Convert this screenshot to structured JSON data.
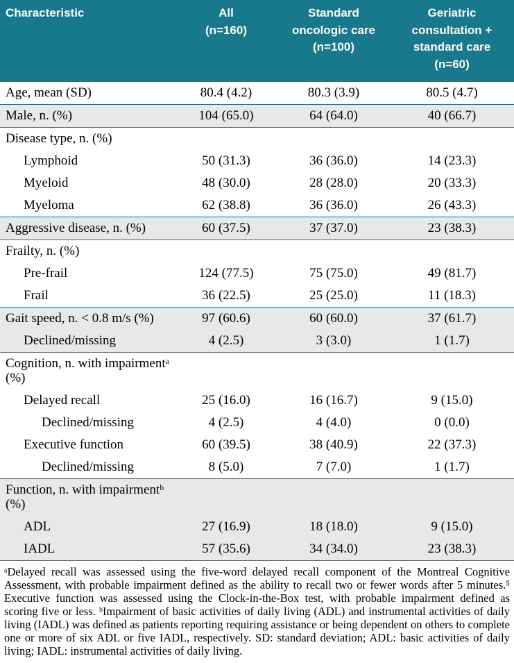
{
  "colors": {
    "header_bg": "#17798b",
    "row_shade": "#e6e8ea",
    "rule": "#17798b",
    "header_text": "#ffffff"
  },
  "table": {
    "header": [
      {
        "label": "Characteristic"
      },
      {
        "label": "All\n(n=160)"
      },
      {
        "label": "Standard\noncologic care\n(n=100)"
      },
      {
        "label": "Geriatric\nconsultation +\nstandard care\n(n=60)"
      }
    ],
    "sections": [
      {
        "shaded": false,
        "rows": [
          {
            "label": "Age, mean (SD)",
            "indent": 0,
            "values": [
              "80.4 (4.2)",
              "80.3 (3.9)",
              "80.5 (4.7)"
            ]
          }
        ]
      },
      {
        "shaded": true,
        "rows": [
          {
            "label": "Male, n. (%)",
            "indent": 0,
            "values": [
              "104 (65.0)",
              "64 (64.0)",
              "40 (66.7)"
            ]
          }
        ]
      },
      {
        "shaded": false,
        "rows": [
          {
            "label": "Disease type, n. (%)",
            "indent": 0,
            "values": [
              "",
              "",
              ""
            ]
          },
          {
            "label": "Lymphoid",
            "indent": 1,
            "values": [
              "50 (31.3)",
              "36 (36.0)",
              "14 (23.3)"
            ]
          },
          {
            "label": "Myeloid",
            "indent": 1,
            "values": [
              "48 (30.0)",
              "28 (28.0)",
              "20 (33.3)"
            ]
          },
          {
            "label": "Myeloma",
            "indent": 1,
            "values": [
              "62 (38.8)",
              "36 (36.0)",
              "26 (43.3)"
            ]
          }
        ]
      },
      {
        "shaded": true,
        "rows": [
          {
            "label": "Aggressive disease, n. (%)",
            "indent": 0,
            "values": [
              "60 (37.5)",
              "37 (37.0)",
              "23 (38.3)"
            ]
          }
        ]
      },
      {
        "shaded": false,
        "rows": [
          {
            "label": "Frailty, n. (%)",
            "indent": 0,
            "values": [
              "",
              "",
              ""
            ]
          },
          {
            "label": "Pre-frail",
            "indent": 1,
            "values": [
              "124 (77.5)",
              "75 (75.0)",
              "49 (81.7)"
            ]
          },
          {
            "label": "Frail",
            "indent": 1,
            "values": [
              "36 (22.5)",
              "25 (25.0)",
              "11 (18.3)"
            ]
          }
        ]
      },
      {
        "shaded": true,
        "rows": [
          {
            "label": "Gait speed, n. < 0.8 m/s (%)",
            "indent": 0,
            "values": [
              "97 (60.6)",
              "60 (60.0)",
              "37 (61.7)"
            ]
          },
          {
            "label": "Declined/missing",
            "indent": 1,
            "values": [
              "4 (2.5)",
              "3 (3.0)",
              "1 (1.7)"
            ]
          }
        ]
      },
      {
        "shaded": false,
        "rows": [
          {
            "label": "Cognition, n. with impairmentᵃ (%)",
            "indent": 0,
            "values": [
              "",
              "",
              ""
            ]
          },
          {
            "label": "Delayed recall",
            "indent": 1,
            "values": [
              "25 (16.0)",
              "16 (16.7)",
              "9 (15.0)"
            ]
          },
          {
            "label": "Declined/missing",
            "indent": 2,
            "values": [
              "4 (2.5)",
              "4 (4.0)",
              "0 (0.0)"
            ]
          },
          {
            "label": "Executive function",
            "indent": 1,
            "values": [
              "60 (39.5)",
              "38 (40.9)",
              "22 (37.3)"
            ]
          },
          {
            "label": "Declined/missing",
            "indent": 2,
            "values": [
              "8 (5.0)",
              "7 (7.0)",
              "1 (1.7)"
            ]
          }
        ]
      },
      {
        "shaded": true,
        "rows": [
          {
            "label": "Function, n. with impairmentᵇ (%)",
            "indent": 0,
            "values": [
              "",
              "",
              ""
            ]
          },
          {
            "label": "ADL",
            "indent": 1,
            "values": [
              "27 (16.9)",
              "18 (18.0)",
              "9 (15.0)"
            ]
          },
          {
            "label": "IADL",
            "indent": 1,
            "values": [
              "57 (35.6)",
              "34 (34.0)",
              "23 (38.3)"
            ]
          }
        ]
      }
    ]
  },
  "footnote": "ᵃDelayed recall was assessed using the five-word delayed recall component of the Montreal Cognitive Assessment, with probable impairment defined as the ability to recall two or fewer words after 5 minutes.⁵ Executive function was assessed using the Clock-in-the-Box test, with probable impairment defined as scoring five or less. ᵇImpairment of basic activities of daily living (ADL) and instrumental activities of daily living (IADL) was defined as patients reporting requiring assistance or being dependent on others to complete one or more of six ADL or five IADL, respectively. SD: standard deviation; ADL: basic activities of daily living; IADL: instrumental activities of daily living."
}
